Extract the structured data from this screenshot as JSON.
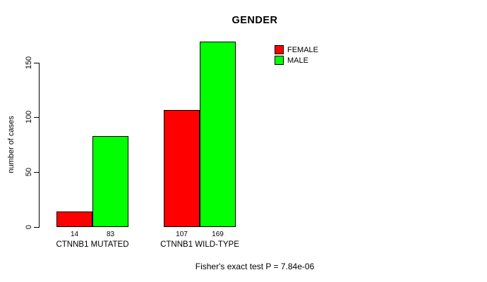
{
  "chart_data": {
    "type": "bar",
    "title": "GENDER",
    "ylabel": "number of cases",
    "xlabel": "",
    "categories": [
      "CTNNB1 MUTATED",
      "CTNNB1 WILD-TYPE"
    ],
    "series": [
      {
        "name": "FEMALE",
        "color": "#ff0000",
        "values": [
          14,
          107
        ]
      },
      {
        "name": "MALE",
        "color": "#00ff00",
        "values": [
          83,
          169
        ]
      }
    ],
    "bar_value_labels": [
      [
        14,
        83
      ],
      [
        107,
        169
      ]
    ],
    "yticks": [
      0,
      50,
      100,
      150
    ],
    "ylim": [
      0,
      170
    ],
    "grid": false,
    "legend": {
      "position": "top-right-inside",
      "entries": [
        {
          "label": "FEMALE",
          "color": "#ff0000"
        },
        {
          "label": "MALE",
          "color": "#00ff00"
        }
      ]
    },
    "annotation": "Fisher's exact test P = 7.84e-06"
  }
}
